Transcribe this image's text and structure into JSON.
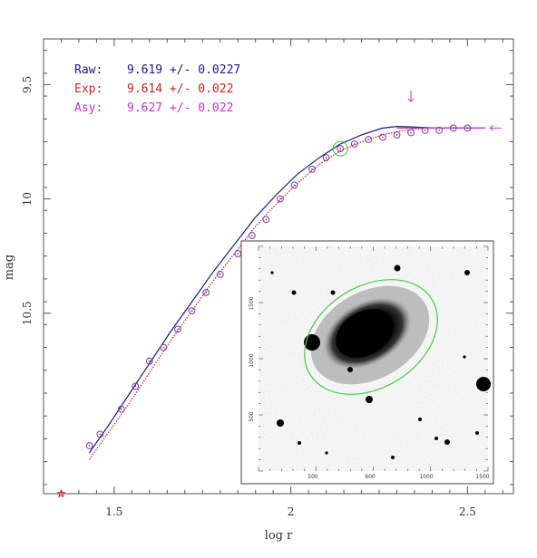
{
  "chart_data": {
    "type": "scatter",
    "xlabel": "log r",
    "ylabel": "mag",
    "xlim": [
      1.3,
      2.63
    ],
    "ylim": [
      11.29,
      9.3
    ],
    "x_ticks": [
      1.5,
      2.0,
      2.5
    ],
    "x_tick_labels": [
      "1.5",
      "2",
      "2.5"
    ],
    "y_ticks": [
      9.5,
      10.0,
      10.5
    ],
    "y_tick_labels": [
      "9.5",
      "10",
      "10.5"
    ],
    "legend": [
      {
        "label": "Raw:",
        "value": "9.619 +/- 0.0227",
        "color": "#1a1a80"
      },
      {
        "label": "Exp:",
        "value": "9.614 +/- 0.022",
        "color": "#cc2222"
      },
      {
        "label": "Asy:",
        "value": "9.627 +/- 0.022",
        "color": "#cc33cc"
      }
    ],
    "series": [
      {
        "marker": "open-circle-dot",
        "color": "#7a3aa0",
        "x": [
          1.43,
          1.46,
          1.52,
          1.56,
          1.6,
          1.64,
          1.68,
          1.72,
          1.76,
          1.8,
          1.85,
          1.89,
          1.93,
          1.97,
          2.01,
          2.06,
          2.1,
          2.14,
          2.18,
          2.22,
          2.26,
          2.3,
          2.34,
          2.38,
          2.42,
          2.46,
          2.5
        ],
        "y": [
          11.08,
          11.03,
          10.92,
          10.82,
          10.71,
          10.65,
          10.57,
          10.49,
          10.41,
          10.33,
          10.24,
          10.16,
          10.09,
          10.0,
          9.94,
          9.87,
          9.82,
          9.78,
          9.76,
          9.74,
          9.73,
          9.72,
          9.71,
          9.7,
          9.7,
          9.69,
          9.69
        ]
      }
    ],
    "curves": [
      {
        "name": "Raw",
        "style": "solid",
        "color": "#1a1a80",
        "x": [
          1.43,
          1.48,
          1.54,
          1.6,
          1.66,
          1.72,
          1.78,
          1.84,
          1.9,
          1.96,
          2.02,
          2.08,
          2.14,
          2.2,
          2.26,
          2.3,
          2.34,
          2.38,
          2.42,
          2.46,
          2.5,
          2.55
        ],
        "y": [
          11.11,
          11.0,
          10.86,
          10.72,
          10.58,
          10.45,
          10.32,
          10.2,
          10.08,
          9.98,
          9.89,
          9.82,
          9.76,
          9.72,
          9.69,
          9.683,
          9.685,
          9.688,
          9.69,
          9.69,
          9.69,
          9.69
        ]
      },
      {
        "name": "Exp",
        "style": "dotted",
        "color": "#cc2222",
        "x": [
          1.43,
          1.48,
          1.54,
          1.6,
          1.66,
          1.72,
          1.78,
          1.84,
          1.9,
          1.96,
          2.02,
          2.08,
          2.14,
          2.2,
          2.26,
          2.32,
          2.38,
          2.44,
          2.5
        ],
        "y": [
          11.14,
          11.03,
          10.9,
          10.76,
          10.62,
          10.49,
          10.36,
          10.24,
          10.12,
          10.02,
          9.93,
          9.85,
          9.79,
          9.75,
          9.72,
          9.7,
          9.69,
          9.69,
          9.69
        ]
      }
    ],
    "asymptote": {
      "x_start": 2.3,
      "x_end": 2.55,
      "y": 9.69,
      "color": "#cc33cc"
    },
    "extra_points": [
      {
        "x": 1.35,
        "y": 11.29,
        "marker": "star",
        "color": "#cc2222"
      }
    ],
    "annotations": [
      {
        "type": "down-arrow",
        "x": 2.34,
        "y": 9.55,
        "color": "#cc33cc"
      },
      {
        "type": "left-arrow",
        "x": 2.58,
        "y": 9.69,
        "color": "#cc33cc"
      },
      {
        "type": "green-circle",
        "x": 2.14,
        "y": 9.78,
        "color": "#33cc33"
      }
    ],
    "grid": false,
    "inset": {
      "type": "galaxy-image",
      "x_tick_labels": [
        "500",
        "600",
        "1000",
        "1500"
      ],
      "y_tick_labels": [
        "1500",
        "1000",
        "500"
      ],
      "ellipse_color": "#44cc44"
    }
  }
}
